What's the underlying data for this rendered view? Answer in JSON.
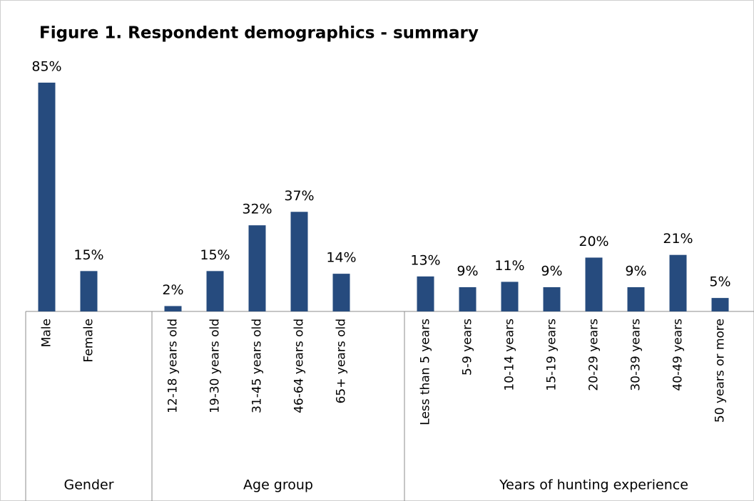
{
  "chart_data": {
    "type": "bar",
    "title": "Figure 1. Respondent demographics - summary",
    "color": "#264b7e",
    "groups": [
      {
        "name": "Gender",
        "categories": [
          "Male",
          "Female"
        ],
        "values": [
          85,
          15
        ],
        "value_labels": [
          "85%",
          "15%"
        ]
      },
      {
        "name": "Age group",
        "categories": [
          "12-18 years old",
          "19-30 years old",
          "31-45 years old",
          "46-64 years old",
          "65+ years old"
        ],
        "values": [
          2,
          15,
          32,
          37,
          14
        ],
        "value_labels": [
          "2%",
          "15%",
          "32%",
          "37%",
          "14%"
        ]
      },
      {
        "name": "Years of hunting experience",
        "categories": [
          "Less than 5 years",
          "5-9 years",
          "10-14 years",
          "15-19 years",
          "20-29 years",
          "30-39 years",
          "40-49 years",
          "50 years or more"
        ],
        "values": [
          13,
          9,
          11,
          9,
          20,
          9,
          21,
          5
        ],
        "value_labels": [
          "13%",
          "9%",
          "11%",
          "9%",
          "20%",
          "9%",
          "21%",
          "5%"
        ]
      }
    ]
  }
}
